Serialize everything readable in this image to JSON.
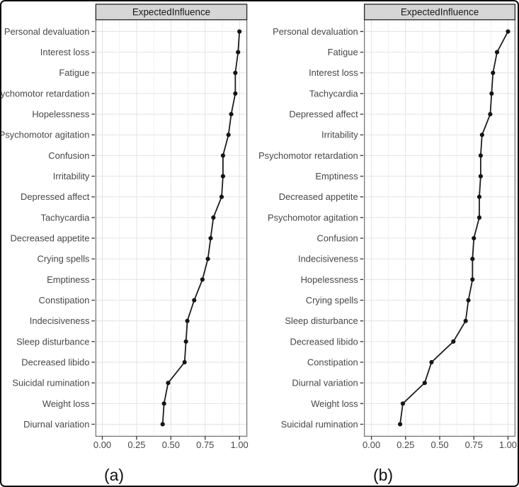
{
  "figure": {
    "captions": [
      "(a)",
      "(b)"
    ]
  },
  "colors": {
    "background": "#ffffff",
    "outer_border": "#0d0d0d",
    "strip_fill": "#d6d6d6",
    "strip_border": "#2e2e2e",
    "strip_text": "#1a1a1a",
    "panel_border": "#6e6e6e",
    "grid_major": "#e3e3e3",
    "grid_minor": "#efefef",
    "line": "#1c1c1c",
    "point": "#141414",
    "label_text": "#474747",
    "tick": "#333333"
  },
  "chart_data": [
    {
      "type": "line",
      "panel": "(a)",
      "title": "ExpectedInfluence",
      "orientation": "horizontal-dotline",
      "grid": true,
      "legend_position": "none",
      "xlim": [
        0,
        1
      ],
      "x_tick_values": [
        0,
        0.25,
        0.5,
        0.75,
        1
      ],
      "x_tick_labels": [
        "0.00",
        "0.25",
        "0.50",
        "0.75",
        "1.00"
      ],
      "categories": [
        "Personal devaluation",
        "Interest loss",
        "Fatigue",
        "Psychomotor retardation",
        "Hopelessness",
        "Psychomotor agitation",
        "Confusion",
        "Irritability",
        "Depressed affect",
        "Tachycardia",
        "Decreased appetite",
        "Crying spells",
        "Emptiness",
        "Constipation",
        "Indecisiveness",
        "Sleep disturbance",
        "Decreased libido",
        "Suicidal rumination",
        "Weight loss",
        "Diurnal variation"
      ],
      "values": [
        1.0,
        0.99,
        0.97,
        0.97,
        0.94,
        0.92,
        0.88,
        0.88,
        0.87,
        0.81,
        0.79,
        0.77,
        0.73,
        0.67,
        0.62,
        0.61,
        0.6,
        0.48,
        0.45,
        0.44
      ]
    },
    {
      "type": "line",
      "panel": "(b)",
      "title": "ExpectedInfluence",
      "orientation": "horizontal-dotline",
      "grid": true,
      "legend_position": "none",
      "xlim": [
        0,
        1
      ],
      "x_tick_values": [
        0,
        0.25,
        0.5,
        0.75,
        1
      ],
      "x_tick_labels": [
        "0.00",
        "0.25",
        "0.50",
        "0.75",
        "1.00"
      ],
      "categories": [
        "Personal devaluation",
        "Fatigue",
        "Interest loss",
        "Tachycardia",
        "Depressed affect",
        "Irritability",
        "Psychomotor retardation",
        "Emptiness",
        "Decreased appetite",
        "Psychomotor agitation",
        "Confusion",
        "Indecisiveness",
        "Hopelessness",
        "Crying spells",
        "Sleep disturbance",
        "Decreased libido",
        "Constipation",
        "Diurnal variation",
        "Weight loss",
        "Suicidal rumination"
      ],
      "values": [
        1.0,
        0.92,
        0.89,
        0.88,
        0.87,
        0.81,
        0.8,
        0.8,
        0.79,
        0.79,
        0.75,
        0.74,
        0.74,
        0.71,
        0.69,
        0.6,
        0.44,
        0.39,
        0.23,
        0.21
      ]
    }
  ]
}
